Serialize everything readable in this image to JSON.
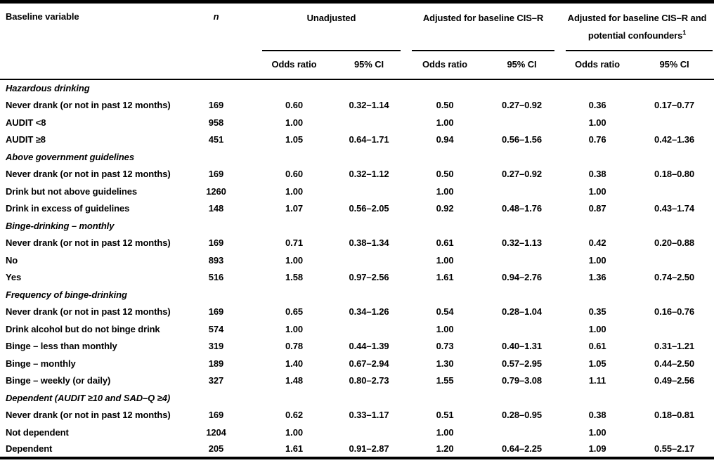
{
  "table": {
    "headers": {
      "baseline_variable": "Baseline variable",
      "n": "n"
    },
    "groups": [
      {
        "label": "Unadjusted"
      },
      {
        "label": "Adjusted for baseline CIS–R"
      },
      {
        "label_line1": "Adjusted for baseline CIS–R and",
        "label_line2": "potential confounders",
        "footnote_marker": "1"
      }
    ],
    "subheaders": {
      "odds_ratio": "Odds ratio",
      "ci": "95% CI"
    },
    "sections": [
      {
        "header": "Hazardous drinking",
        "rows": [
          {
            "label": "Never drank (or not in past 12 months)",
            "n": "169",
            "or1": "0.60",
            "ci1": "0.32–1.14",
            "or2": "0.50",
            "ci2": "0.27–0.92",
            "or3": "0.36",
            "ci3": "0.17–0.77"
          },
          {
            "label": "AUDIT <8",
            "n": "958",
            "or1": "1.00",
            "ci1": "",
            "or2": "1.00",
            "ci2": "",
            "or3": "1.00",
            "ci3": ""
          },
          {
            "label": "AUDIT ≥8",
            "n": "451",
            "or1": "1.05",
            "ci1": "0.64–1.71",
            "or2": "0.94",
            "ci2": "0.56–1.56",
            "or3": "0.76",
            "ci3": "0.42–1.36"
          }
        ]
      },
      {
        "header": "Above government guidelines",
        "rows": [
          {
            "label": "Never drank (or not in past 12 months)",
            "n": "169",
            "or1": "0.60",
            "ci1": "0.32–1.12",
            "or2": "0.50",
            "ci2": "0.27–0.92",
            "or3": "0.38",
            "ci3": "0.18–0.80"
          },
          {
            "label": "Drink but not above guidelines",
            "n": "1260",
            "or1": "1.00",
            "ci1": "",
            "or2": "1.00",
            "ci2": "",
            "or3": "1.00",
            "ci3": ""
          },
          {
            "label": "Drink in excess of guidelines",
            "n": "148",
            "or1": "1.07",
            "ci1": "0.56–2.05",
            "or2": "0.92",
            "ci2": "0.48–1.76",
            "or3": "0.87",
            "ci3": "0.43–1.74"
          }
        ]
      },
      {
        "header": "Binge-drinking – monthly",
        "rows": [
          {
            "label": "Never drank (or not in past 12 months)",
            "n": "169",
            "or1": "0.71",
            "ci1": "0.38–1.34",
            "or2": "0.61",
            "ci2": "0.32–1.13",
            "or3": "0.42",
            "ci3": "0.20–0.88"
          },
          {
            "label": "No",
            "n": "893",
            "or1": "1.00",
            "ci1": "",
            "or2": "1.00",
            "ci2": "",
            "or3": "1.00",
            "ci3": ""
          },
          {
            "label": "Yes",
            "n": "516",
            "or1": "1.58",
            "ci1": "0.97–2.56",
            "or2": "1.61",
            "ci2": "0.94–2.76",
            "or3": "1.36",
            "ci3": "0.74–2.50"
          }
        ]
      },
      {
        "header": "Frequency of binge-drinking",
        "rows": [
          {
            "label": "Never drank (or not in past 12 months)",
            "n": "169",
            "or1": "0.65",
            "ci1": "0.34–1.26",
            "or2": "0.54",
            "ci2": "0.28–1.04",
            "or3": "0.35",
            "ci3": "0.16–0.76"
          },
          {
            "label": "Drink alcohol but do not binge drink",
            "n": "574",
            "or1": "1.00",
            "ci1": "",
            "or2": "1.00",
            "ci2": "",
            "or3": "1.00",
            "ci3": ""
          },
          {
            "label": "Binge – less than monthly",
            "n": "319",
            "or1": "0.78",
            "ci1": "0.44–1.39",
            "or2": "0.73",
            "ci2": "0.40–1.31",
            "or3": "0.61",
            "ci3": "0.31–1.21"
          },
          {
            "label": "Binge – monthly",
            "n": "189",
            "or1": "1.40",
            "ci1": "0.67–2.94",
            "or2": "1.30",
            "ci2": "0.57–2.95",
            "or3": "1.05",
            "ci3": "0.44–2.50"
          },
          {
            "label": "Binge – weekly (or daily)",
            "n": "327",
            "or1": "1.48",
            "ci1": "0.80–2.73",
            "or2": "1.55",
            "ci2": "0.79–3.08",
            "or3": "1.11",
            "ci3": "0.49–2.56"
          }
        ]
      },
      {
        "header": "Dependent (AUDIT ≥10 and SAD–Q ≥4)",
        "rows": [
          {
            "label": "Never drank (or not in past 12 months)",
            "n": "169",
            "or1": "0.62",
            "ci1": "0.33–1.17",
            "or2": "0.51",
            "ci2": "0.28–0.95",
            "or3": "0.38",
            "ci3": "0.18–0.81"
          },
          {
            "label": "Not dependent",
            "n": "1204",
            "or1": "1.00",
            "ci1": "",
            "or2": "1.00",
            "ci2": "",
            "or3": "1.00",
            "ci3": ""
          },
          {
            "label": "Dependent",
            "n": "205",
            "or1": "1.61",
            "ci1": "0.91–2.87",
            "or2": "1.20",
            "ci2": "0.64–2.25",
            "or3": "1.09",
            "ci3": "0.55–2.17"
          }
        ]
      }
    ]
  }
}
